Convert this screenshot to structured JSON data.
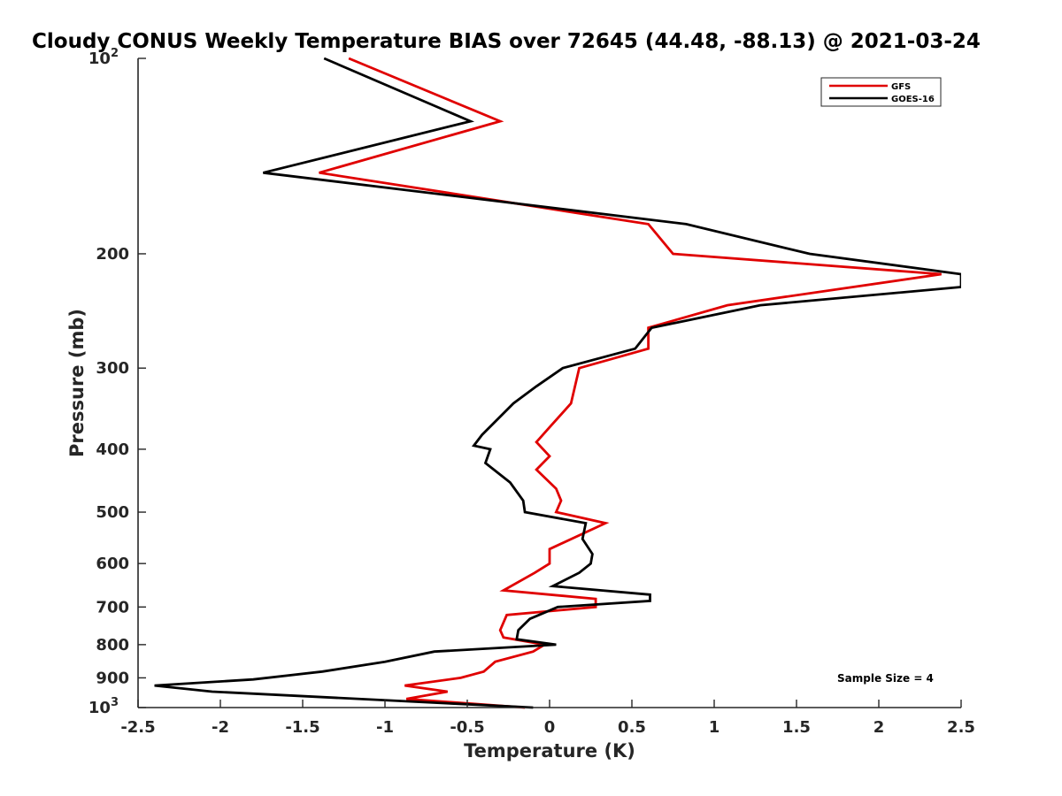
{
  "chart_data": {
    "type": "line",
    "title": "Cloudy CONUS Weekly Temperature BIAS over 72645 (44.48, -88.13) @ 2021-03-24",
    "xlabel": "Temperature (K)",
    "ylabel": "Pressure (mb)",
    "xlim": [
      -2.5,
      2.5
    ],
    "ylim": [
      100,
      1000
    ],
    "y_scale": "log",
    "y_reversed": true,
    "grid": false,
    "legend_position": "top-right",
    "x_ticks": [
      -2.5,
      -2,
      -1.5,
      -1,
      -0.5,
      0,
      0.5,
      1,
      1.5,
      2,
      2.5
    ],
    "x_tick_labels": [
      "-2.5",
      "-2",
      "-1.5",
      "-1",
      "-0.5",
      "0",
      "0.5",
      "1",
      "1.5",
      "2",
      "2.5"
    ],
    "y_ticks": [
      100,
      200,
      300,
      400,
      500,
      600,
      700,
      800,
      900,
      1000
    ],
    "y_tick_labels": [
      {
        "base": "10",
        "sup": "2"
      },
      {
        "base": "200",
        "sup": ""
      },
      {
        "base": "300",
        "sup": ""
      },
      {
        "base": "400",
        "sup": ""
      },
      {
        "base": "500",
        "sup": ""
      },
      {
        "base": "600",
        "sup": ""
      },
      {
        "base": "700",
        "sup": ""
      },
      {
        "base": "800",
        "sup": ""
      },
      {
        "base": "900",
        "sup": ""
      },
      {
        "base": "10",
        "sup": "3"
      }
    ],
    "annotation": "Sample Size = 4",
    "series": [
      {
        "name": "GFS",
        "color": "#e00000",
        "points": [
          [
            -1.22,
            100
          ],
          [
            -0.3,
            125
          ],
          [
            -1.4,
            150
          ],
          [
            0.6,
            180
          ],
          [
            0.75,
            200
          ],
          [
            2.38,
            215
          ],
          [
            1.08,
            240
          ],
          [
            0.6,
            260
          ],
          [
            0.6,
            280
          ],
          [
            0.18,
            300
          ],
          [
            0.13,
            340
          ],
          [
            0.0,
            370
          ],
          [
            -0.08,
            390
          ],
          [
            0.0,
            410
          ],
          [
            -0.08,
            430
          ],
          [
            0.04,
            460
          ],
          [
            0.07,
            480
          ],
          [
            0.04,
            500
          ],
          [
            0.34,
            520
          ],
          [
            0.0,
            570
          ],
          [
            0.0,
            600
          ],
          [
            -0.09,
            620
          ],
          [
            -0.28,
            660
          ],
          [
            0.28,
            680
          ],
          [
            0.28,
            700
          ],
          [
            -0.26,
            720
          ],
          [
            -0.3,
            760
          ],
          [
            -0.28,
            780
          ],
          [
            -0.03,
            800
          ],
          [
            -0.1,
            820
          ],
          [
            -0.33,
            850
          ],
          [
            -0.4,
            880
          ],
          [
            -0.54,
            900
          ],
          [
            -0.88,
            925
          ],
          [
            -0.62,
            945
          ],
          [
            -0.87,
            970
          ],
          [
            -0.15,
            1000
          ]
        ]
      },
      {
        "name": "GOES-16",
        "color": "#000000",
        "points": [
          [
            -1.37,
            100
          ],
          [
            -0.48,
            125
          ],
          [
            -1.74,
            150
          ],
          [
            0.83,
            180
          ],
          [
            1.58,
            200
          ],
          [
            2.5,
            215
          ],
          [
            2.5,
            225
          ],
          [
            1.28,
            240
          ],
          [
            0.62,
            260
          ],
          [
            0.52,
            280
          ],
          [
            0.08,
            300
          ],
          [
            -0.08,
            320
          ],
          [
            -0.22,
            340
          ],
          [
            -0.41,
            380
          ],
          [
            -0.46,
            395
          ],
          [
            -0.36,
            400
          ],
          [
            -0.39,
            420
          ],
          [
            -0.24,
            450
          ],
          [
            -0.16,
            480
          ],
          [
            -0.15,
            500
          ],
          [
            0.22,
            520
          ],
          [
            0.2,
            550
          ],
          [
            0.26,
            580
          ],
          [
            0.25,
            600
          ],
          [
            0.18,
            620
          ],
          [
            0.02,
            650
          ],
          [
            0.61,
            670
          ],
          [
            0.61,
            685
          ],
          [
            0.05,
            700
          ],
          [
            -0.12,
            730
          ],
          [
            -0.19,
            760
          ],
          [
            -0.2,
            785
          ],
          [
            0.04,
            800
          ],
          [
            -0.7,
            820
          ],
          [
            -1.0,
            850
          ],
          [
            -1.38,
            880
          ],
          [
            -1.8,
            905
          ],
          [
            -2.4,
            925
          ],
          [
            -2.05,
            945
          ],
          [
            -0.1,
            1000
          ]
        ]
      }
    ]
  }
}
